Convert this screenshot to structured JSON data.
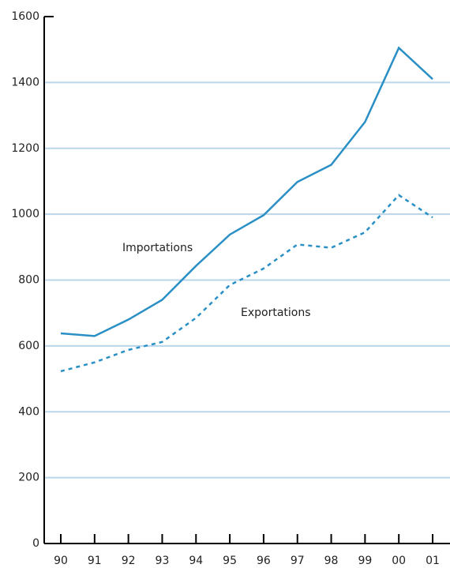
{
  "chart_data": {
    "type": "line",
    "categories": [
      "90",
      "91",
      "92",
      "93",
      "94",
      "95",
      "96",
      "97",
      "98",
      "99",
      "00",
      "01"
    ],
    "series": [
      {
        "name": "Importations",
        "color": "#2a8fc4",
        "line_style": "solid",
        "values": [
          638,
          630,
          680,
          740,
          843,
          938,
          997,
          1098,
          1150,
          1280,
          1505,
          1410
        ]
      },
      {
        "name": "Exportations",
        "color": "#2a8fc4",
        "line_style": "dashed",
        "values": [
          523,
          550,
          588,
          612,
          685,
          785,
          835,
          908,
          898,
          945,
          1058,
          990
        ]
      }
    ],
    "ylim": [
      0,
      1600
    ],
    "yticks": [
      0,
      200,
      400,
      600,
      800,
      1000,
      1200,
      1400,
      1600
    ],
    "grid": true,
    "grid_color": "#b9d6ea"
  }
}
